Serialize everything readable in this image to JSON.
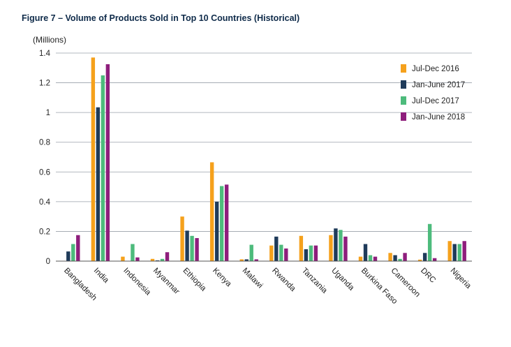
{
  "chart_data": {
    "type": "bar",
    "title": "Figure 7 – Volume of Products Sold in Top 10 Countries (Historical)",
    "unit_label": "(Millions)",
    "ylim": [
      0,
      1.4
    ],
    "yticks": [
      "0",
      "0.2",
      "0.4",
      "0.6",
      "0.8",
      "1",
      "1.2",
      "1.4"
    ],
    "grid": true,
    "legend_position": "top-right",
    "categories": [
      "Bangladesh",
      "India",
      "Indonesia",
      "Myanmar",
      "Ethiopia",
      "Kenya",
      "Malawi",
      "Rwanda",
      "Tanzania",
      "Uganda",
      "Burkina Faso",
      "Cameroon",
      "DRC",
      "Nigeria"
    ],
    "series": [
      {
        "name": "Jul-Dec 2016",
        "color": "#f5a11c",
        "values": [
          0.0,
          1.37,
          0.03,
          0.015,
          0.3,
          0.665,
          0.012,
          0.105,
          0.17,
          0.175,
          0.03,
          0.055,
          0.01,
          0.135
        ]
      },
      {
        "name": "Jan-June 2017",
        "color": "#1f3b5a",
        "values": [
          0.065,
          1.035,
          0.0,
          0.005,
          0.205,
          0.4,
          0.012,
          0.165,
          0.08,
          0.22,
          0.115,
          0.04,
          0.055,
          0.115
        ]
      },
      {
        "name": "Jul-Dec 2017",
        "color": "#4dbb7c",
        "values": [
          0.115,
          1.25,
          0.115,
          0.015,
          0.17,
          0.505,
          0.11,
          0.11,
          0.105,
          0.21,
          0.04,
          0.015,
          0.25,
          0.115
        ]
      },
      {
        "name": "Jan-June 2018",
        "color": "#8e1e7c",
        "values": [
          0.175,
          1.325,
          0.025,
          0.06,
          0.155,
          0.515,
          0.012,
          0.085,
          0.105,
          0.165,
          0.03,
          0.055,
          0.02,
          0.135
        ]
      }
    ]
  }
}
